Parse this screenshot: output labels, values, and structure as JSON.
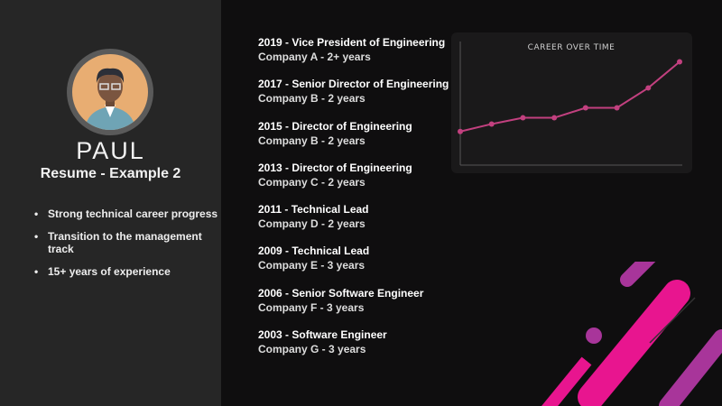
{
  "profile": {
    "name": "PAUL",
    "subtitle": "Resume - Example 2"
  },
  "highlights": [
    "Strong technical career progress",
    "Transition to the management track",
    "15+ years of experience"
  ],
  "timeline": [
    {
      "title": "2019 - Vice President of Engineering",
      "company": "Company A - 2+ years"
    },
    {
      "title": "2017 - Senior Director of Engineering",
      "company": "Company B - 2 years"
    },
    {
      "title": "2015 - Director of Engineering",
      "company": "Company B - 2 years"
    },
    {
      "title": "2013 - Director of Engineering",
      "company": "Company C - 2 years"
    },
    {
      "title": "2011 - Technical Lead",
      "company": "Company D - 2 years"
    },
    {
      "title": "2009 - Technical Lead",
      "company": "Company E - 3 years"
    },
    {
      "title": "2006 - Senior Software Engineer",
      "company": "Company F - 3 years"
    },
    {
      "title": "2003 - Software Engineer",
      "company": "Company G - 3 years"
    }
  ],
  "chart_data": {
    "type": "line",
    "title": "CAREER OVER TIME",
    "xlabel": "",
    "ylabel": "",
    "x": [
      1,
      2,
      3,
      4,
      5,
      6,
      7,
      8
    ],
    "values": [
      27,
      33,
      38,
      38,
      46,
      46,
      62,
      83
    ],
    "ylim": [
      0,
      100
    ],
    "grid": false,
    "line_color": "#c2407f"
  },
  "colors": {
    "accent": "#e8158f",
    "accent2": "#a8359a"
  }
}
